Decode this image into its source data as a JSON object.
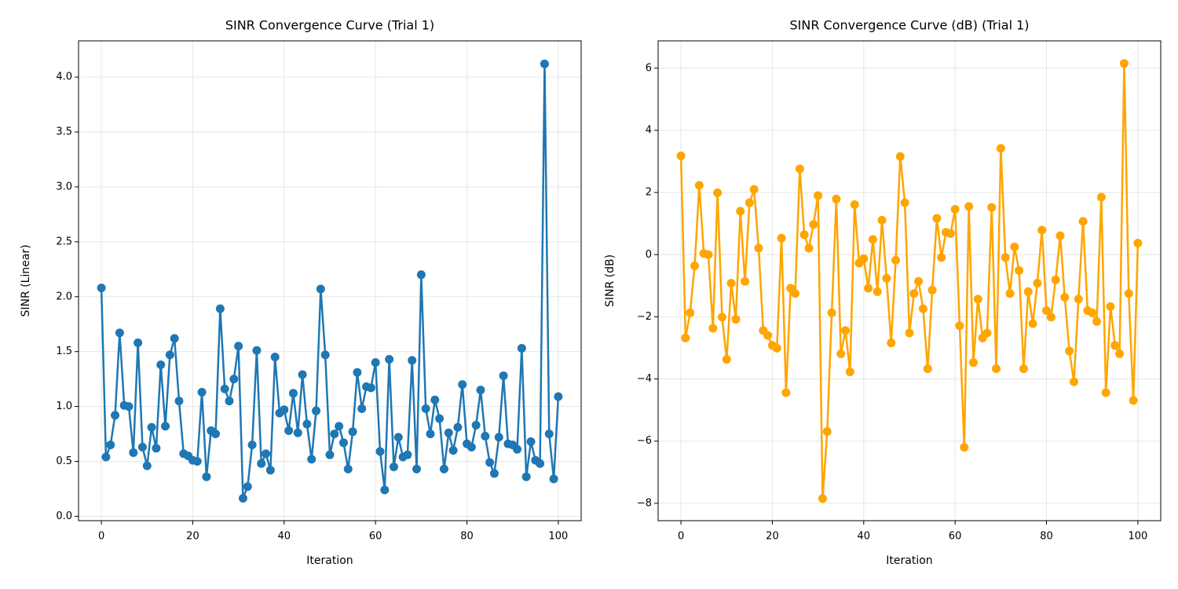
{
  "chart_data": [
    {
      "type": "line",
      "title": "SINR Convergence Curve (Trial 1)",
      "x_label": "Iteration",
      "y_label": "SINR (Linear)",
      "color": "#1f77b4",
      "grid": true,
      "x": [
        0,
        1,
        2,
        3,
        4,
        5,
        6,
        7,
        8,
        9,
        10,
        11,
        12,
        13,
        14,
        15,
        16,
        17,
        18,
        19,
        20,
        21,
        22,
        23,
        24,
        25,
        26,
        27,
        28,
        29,
        30,
        31,
        32,
        33,
        34,
        35,
        36,
        37,
        38,
        39,
        40,
        41,
        42,
        43,
        44,
        45,
        46,
        47,
        48,
        49,
        50,
        51,
        52,
        53,
        54,
        55,
        56,
        57,
        58,
        59,
        60,
        61,
        62,
        63,
        64,
        65,
        66,
        67,
        68,
        69,
        70,
        71,
        72,
        73,
        74,
        75,
        76,
        77,
        78,
        79,
        80,
        81,
        82,
        83,
        84,
        85,
        86,
        87,
        88,
        89,
        90,
        91,
        92,
        93,
        94,
        95,
        96,
        97,
        98,
        99,
        100
      ],
      "values": [
        2.08,
        0.54,
        0.65,
        0.92,
        1.67,
        1.01,
        1.0,
        0.58,
        1.58,
        0.63,
        0.46,
        0.81,
        0.62,
        1.38,
        0.82,
        1.47,
        1.62,
        1.05,
        0.57,
        0.55,
        0.51,
        0.5,
        1.13,
        0.36,
        0.78,
        0.75,
        1.89,
        1.16,
        1.05,
        1.25,
        1.55,
        0.164,
        0.27,
        0.65,
        1.51,
        0.48,
        0.57,
        0.42,
        1.45,
        0.94,
        0.97,
        0.78,
        1.12,
        0.76,
        1.29,
        0.84,
        0.52,
        0.96,
        2.07,
        1.47,
        0.56,
        0.75,
        0.82,
        0.67,
        0.43,
        0.77,
        1.31,
        0.98,
        1.18,
        1.17,
        1.4,
        0.59,
        0.24,
        1.43,
        0.45,
        0.72,
        0.54,
        0.56,
        1.42,
        0.43,
        2.2,
        0.98,
        0.75,
        1.06,
        0.89,
        0.43,
        0.76,
        0.6,
        0.81,
        1.2,
        0.66,
        0.63,
        0.83,
        1.15,
        0.73,
        0.49,
        0.39,
        0.72,
        1.28,
        0.66,
        0.65,
        0.61,
        1.53,
        0.36,
        0.68,
        0.51,
        0.48,
        4.12,
        0.75,
        0.34,
        1.09
      ],
      "xlim": [
        -5,
        105
      ],
      "ylim": [
        -0.04,
        4.33
      ],
      "xticks": [
        0,
        20,
        40,
        60,
        80,
        100
      ],
      "yticks": [
        {
          "value": 0,
          "label": "0.0"
        },
        0.5,
        {
          "value": 1,
          "label": "1.0"
        },
        1.5,
        {
          "value": 2,
          "label": "2.0"
        },
        2.5,
        {
          "value": 3,
          "label": "3.0"
        },
        3.5,
        {
          "value": 4,
          "label": "4.0"
        }
      ]
    },
    {
      "type": "line",
      "title": "SINR Convergence Curve (dB) (Trial 1)",
      "x_label": "Iteration",
      "y_label": "SINR (dB)",
      "color": "#ffa500",
      "grid": true,
      "x": [
        0,
        1,
        2,
        3,
        4,
        5,
        6,
        7,
        8,
        9,
        10,
        11,
        12,
        13,
        14,
        15,
        16,
        17,
        18,
        19,
        20,
        21,
        22,
        23,
        24,
        25,
        26,
        27,
        28,
        29,
        30,
        31,
        32,
        33,
        34,
        35,
        36,
        37,
        38,
        39,
        40,
        41,
        42,
        43,
        44,
        45,
        46,
        47,
        48,
        49,
        50,
        51,
        52,
        53,
        54,
        55,
        56,
        57,
        58,
        59,
        60,
        61,
        62,
        63,
        64,
        65,
        66,
        67,
        68,
        69,
        70,
        71,
        72,
        73,
        74,
        75,
        76,
        77,
        78,
        79,
        80,
        81,
        82,
        83,
        84,
        85,
        86,
        87,
        88,
        89,
        90,
        91,
        92,
        93,
        94,
        95,
        96,
        97,
        98,
        99,
        100
      ],
      "values": [
        3.18,
        -2.68,
        -1.87,
        -0.36,
        2.23,
        0.04,
        0.0,
        -2.37,
        1.99,
        -2.01,
        -3.37,
        -0.92,
        -2.08,
        1.4,
        -0.86,
        1.67,
        2.1,
        0.21,
        -2.44,
        -2.6,
        -2.92,
        -3.01,
        0.53,
        -4.44,
        -1.08,
        -1.25,
        2.76,
        0.64,
        0.21,
        0.97,
        1.9,
        -7.85,
        -5.69,
        -1.87,
        1.79,
        -3.19,
        -2.44,
        -3.77,
        1.61,
        -0.27,
        -0.13,
        -1.08,
        0.49,
        -1.19,
        1.11,
        -0.76,
        -2.84,
        -0.18,
        3.16,
        1.67,
        -2.52,
        -1.25,
        -0.86,
        -1.74,
        -3.67,
        -1.14,
        1.17,
        -0.09,
        0.72,
        0.68,
        1.46,
        -2.29,
        -6.2,
        1.55,
        -3.47,
        -1.43,
        -2.68,
        -2.52,
        1.52,
        -3.67,
        3.42,
        -0.09,
        -1.25,
        0.25,
        -0.51,
        -3.67,
        -1.19,
        -2.22,
        -0.92,
        0.79,
        -1.8,
        -2.01,
        -0.81,
        0.61,
        -1.37,
        -3.1,
        -4.09,
        -1.43,
        1.07,
        -1.8,
        -1.87,
        -2.15,
        1.85,
        -4.44,
        -1.67,
        -2.92,
        -3.19,
        6.15,
        -1.25,
        -4.69,
        0.37
      ],
      "xlim": [
        -5,
        105
      ],
      "ylim": [
        -8.56,
        6.88
      ],
      "xticks": [
        0,
        20,
        40,
        60,
        80,
        100
      ],
      "yticks": [
        {
          "value": -8,
          "label": "−8"
        },
        {
          "value": -6,
          "label": "−6"
        },
        {
          "value": -4,
          "label": "−4"
        },
        {
          "value": -2,
          "label": "−2"
        },
        0,
        2,
        4,
        6
      ]
    }
  ]
}
